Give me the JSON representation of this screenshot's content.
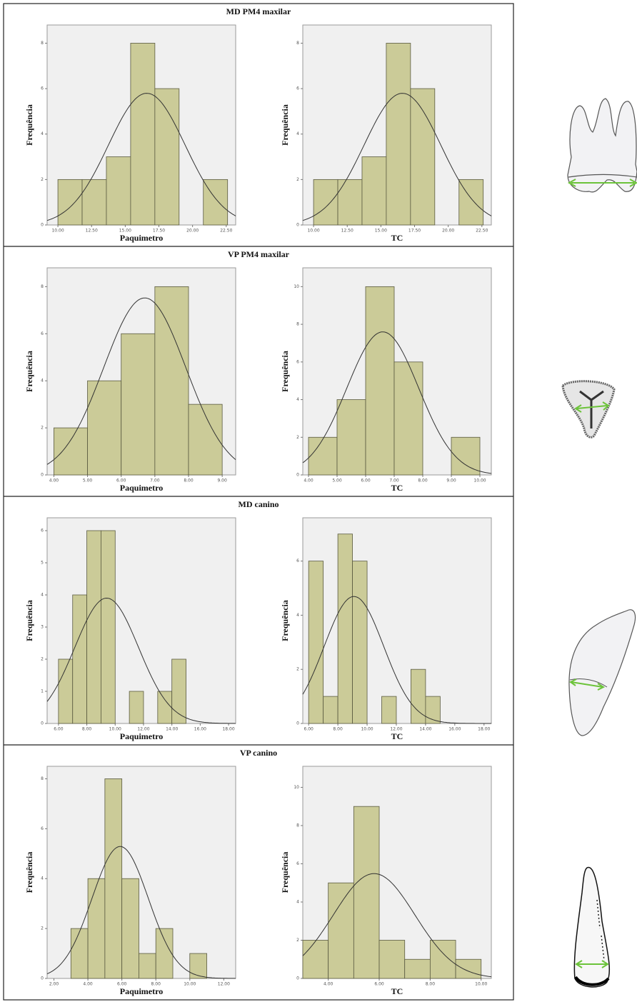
{
  "panel_titles": [
    "MD PM4 maxilar",
    "VP PM4 maxilar",
    "MD canino",
    "VP canino"
  ],
  "chart_data": [
    {
      "type": "histogram",
      "xlabel": "Paquimetro",
      "ylabel": "Frequência",
      "color": "#cbcb98",
      "bins": [
        10,
        11.8,
        13.6,
        15.4,
        17.2,
        19,
        20.8,
        22.6
      ],
      "values": [
        2,
        2,
        3,
        8,
        6,
        0,
        2
      ],
      "xlim": [
        9.2,
        23.2
      ],
      "ylim": [
        0,
        8.8
      ],
      "xticks": [
        {
          "value": 10,
          "label": "10.00"
        },
        {
          "value": 12.5,
          "label": "12.50"
        },
        {
          "value": 15,
          "label": "15.00"
        },
        {
          "value": 17.5,
          "label": "17.50"
        },
        {
          "value": 20,
          "label": "20.00"
        },
        {
          "value": 22.5,
          "label": "22.50"
        }
      ],
      "yticks": [
        0,
        2,
        4,
        6,
        8
      ],
      "normal": {
        "mean": 16.6,
        "sd": 2.85
      }
    },
    {
      "type": "histogram",
      "xlabel": "TC",
      "ylabel": "Frequência",
      "color": "#cbcb98",
      "bins": [
        10,
        11.8,
        13.6,
        15.4,
        17.2,
        19,
        20.8,
        22.6
      ],
      "values": [
        2,
        2,
        3,
        8,
        6,
        0,
        2
      ],
      "xlim": [
        9.2,
        23.2
      ],
      "ylim": [
        0,
        8.8
      ],
      "xticks": [
        {
          "value": 10,
          "label": "10.00"
        },
        {
          "value": 12.5,
          "label": "12.50"
        },
        {
          "value": 15,
          "label": "15.00"
        },
        {
          "value": 17.5,
          "label": "17.50"
        },
        {
          "value": 20,
          "label": "20.00"
        },
        {
          "value": 22.5,
          "label": "22.50"
        }
      ],
      "yticks": [
        0,
        2,
        4,
        6,
        8
      ],
      "normal": {
        "mean": 16.6,
        "sd": 2.85
      }
    },
    {
      "type": "histogram",
      "xlabel": "Paquimetro",
      "ylabel": "Frequência",
      "color": "#cbcb98",
      "bins": [
        4,
        5,
        6,
        7,
        8,
        9
      ],
      "values": [
        2,
        4,
        6,
        8,
        3
      ],
      "xlim": [
        3.8,
        9.4
      ],
      "ylim": [
        0,
        8.8
      ],
      "xticks": [
        {
          "value": 4,
          "label": "4.00"
        },
        {
          "value": 5,
          "label": "5.00"
        },
        {
          "value": 6,
          "label": "6.00"
        },
        {
          "value": 7,
          "label": "7.00"
        },
        {
          "value": 8,
          "label": "8.00"
        },
        {
          "value": 9,
          "label": "9.00"
        }
      ],
      "yticks": [
        0,
        2,
        4,
        6,
        8
      ],
      "normal": {
        "mean": 6.7,
        "sd": 1.22
      }
    },
    {
      "type": "histogram",
      "xlabel": "TC",
      "ylabel": "Frequência",
      "color": "#cbcb98",
      "bins": [
        4,
        5,
        6,
        7,
        8,
        9,
        10
      ],
      "values": [
        2,
        4,
        10,
        6,
        0,
        2
      ],
      "xlim": [
        3.8,
        10.4
      ],
      "ylim": [
        0,
        11
      ],
      "xticks": [
        {
          "value": 4,
          "label": "4.00"
        },
        {
          "value": 5,
          "label": "5.00"
        },
        {
          "value": 6,
          "label": "6.00"
        },
        {
          "value": 7,
          "label": "7.00"
        },
        {
          "value": 8,
          "label": "8.00"
        },
        {
          "value": 9,
          "label": "9.00"
        },
        {
          "value": 10,
          "label": "10.00"
        }
      ],
      "yticks": [
        0,
        2,
        4,
        6,
        8,
        10
      ],
      "normal": {
        "mean": 6.6,
        "sd": 1.26
      }
    },
    {
      "type": "histogram",
      "xlabel": "Paquimetro",
      "ylabel": "Frequência",
      "color": "#cbcb98",
      "bins": [
        6,
        7,
        8,
        9,
        10,
        11,
        12,
        13,
        14,
        15
      ],
      "values": [
        2,
        4,
        6,
        6,
        0,
        1,
        0,
        1,
        2
      ],
      "xlim": [
        5.2,
        18.5
      ],
      "ylim": [
        0,
        6.4
      ],
      "xticks": [
        {
          "value": 6,
          "label": "6.00"
        },
        {
          "value": 8,
          "label": "8.00"
        },
        {
          "value": 10,
          "label": "10.00"
        },
        {
          "value": 12,
          "label": "12.00"
        },
        {
          "value": 14,
          "label": "14.00"
        },
        {
          "value": 16,
          "label": "16.00"
        },
        {
          "value": 18,
          "label": "18.00"
        }
      ],
      "yticks": [
        0,
        1,
        2,
        3,
        4,
        5,
        6
      ],
      "normal": {
        "mean": 9.4,
        "sd": 2.25
      }
    },
    {
      "type": "histogram",
      "xlabel": "TC",
      "ylabel": "Frequência",
      "color": "#cbcb98",
      "bins": [
        6,
        7,
        8,
        9,
        10,
        11,
        12,
        13,
        14,
        15
      ],
      "values": [
        6,
        1,
        7,
        6,
        0,
        1,
        0,
        2,
        1
      ],
      "xlim": [
        5.6,
        18.5
      ],
      "ylim": [
        0,
        7.6
      ],
      "xticks": [
        {
          "value": 6,
          "label": "6.00"
        },
        {
          "value": 8,
          "label": "8.00"
        },
        {
          "value": 10,
          "label": "10.00"
        },
        {
          "value": 12,
          "label": "12.00"
        },
        {
          "value": 14,
          "label": "14.00"
        },
        {
          "value": 16,
          "label": "16.00"
        },
        {
          "value": 18,
          "label": "18.00"
        }
      ],
      "yticks": [
        0,
        2,
        4,
        6
      ],
      "normal": {
        "mean": 9.1,
        "sd": 2.04
      }
    },
    {
      "type": "histogram",
      "xlabel": "Paquimetro",
      "ylabel": "Frequência",
      "color": "#cbcb98",
      "bins": [
        3,
        4,
        5,
        6,
        7,
        8,
        9,
        10,
        11
      ],
      "values": [
        2,
        4,
        8,
        4,
        1,
        2,
        0,
        1
      ],
      "xlim": [
        1.6,
        12.7
      ],
      "ylim": [
        0,
        8.5
      ],
      "xticks": [
        {
          "value": 2,
          "label": "2.00"
        },
        {
          "value": 4,
          "label": "4.00"
        },
        {
          "value": 6,
          "label": "6.00"
        },
        {
          "value": 8,
          "label": "8.00"
        },
        {
          "value": 10,
          "label": "10.00"
        },
        {
          "value": 12,
          "label": "12.00"
        }
      ],
      "yticks": [
        0,
        2,
        4,
        6,
        8
      ],
      "normal": {
        "mean": 5.9,
        "sd": 1.66
      }
    },
    {
      "type": "histogram",
      "xlabel": "TC",
      "ylabel": "Frequência",
      "color": "#cbcb98",
      "bins": [
        3,
        4,
        5,
        6,
        7,
        8,
        9,
        10
      ],
      "values": [
        2,
        5,
        9,
        2,
        1,
        2,
        1
      ],
      "xlim": [
        3,
        10.4
      ],
      "ylim": [
        0,
        11.1
      ],
      "xticks": [
        {
          "value": 4,
          "label": "4.00"
        },
        {
          "value": 6,
          "label": "6.00"
        },
        {
          "value": 8,
          "label": "8.00"
        },
        {
          "value": 10,
          "label": "10.00"
        }
      ],
      "yticks": [
        0,
        2,
        4,
        6,
        8,
        10
      ],
      "normal": {
        "mean": 5.8,
        "sd": 1.6
      }
    }
  ]
}
